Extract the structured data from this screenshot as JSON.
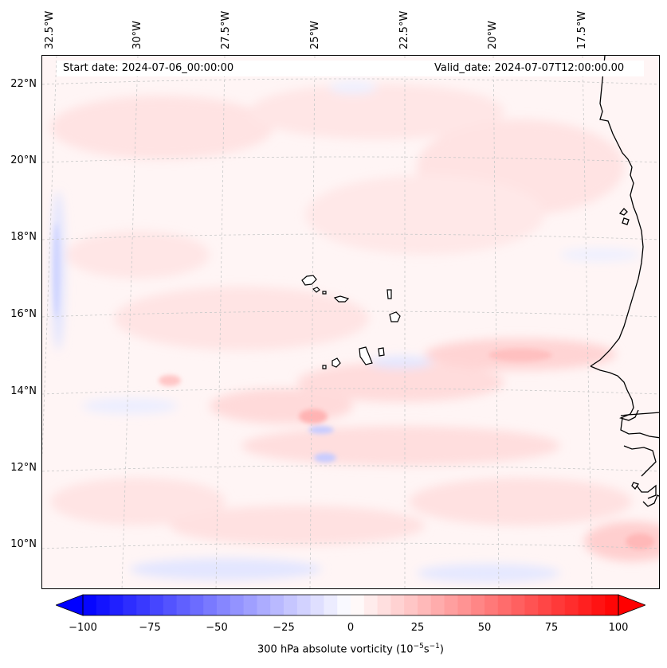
{
  "header": {
    "start_date": "Start date: 2024-07-06_00:00:00",
    "valid_date": "Valid_date: 2024-07-07T12:00:00.00"
  },
  "map": {
    "lon_labels": [
      "32.5°W",
      "30°W",
      "27.5°W",
      "25°W",
      "22.5°W",
      "20°W",
      "17.5°W"
    ],
    "lat_labels": [
      "22°N",
      "20°N",
      "18°N",
      "16°N",
      "14°N",
      "12°N",
      "10°N"
    ],
    "coastline_color": "#000000",
    "field_colors": {
      "positive": "#ff0000",
      "negative": "#0000ff",
      "neutral": "#ffffff"
    }
  },
  "colorbar": {
    "ticks": [
      "−100",
      "−75",
      "−50",
      "−25",
      "0",
      "25",
      "50",
      "75",
      "100"
    ],
    "range": [
      -100,
      100
    ],
    "title": "300 hPa absolute vorticity (10",
    "title_exp1": "−5",
    "title_mid": "s",
    "title_exp2": "−1",
    "title_end": ")",
    "cmap": "bwr"
  }
}
